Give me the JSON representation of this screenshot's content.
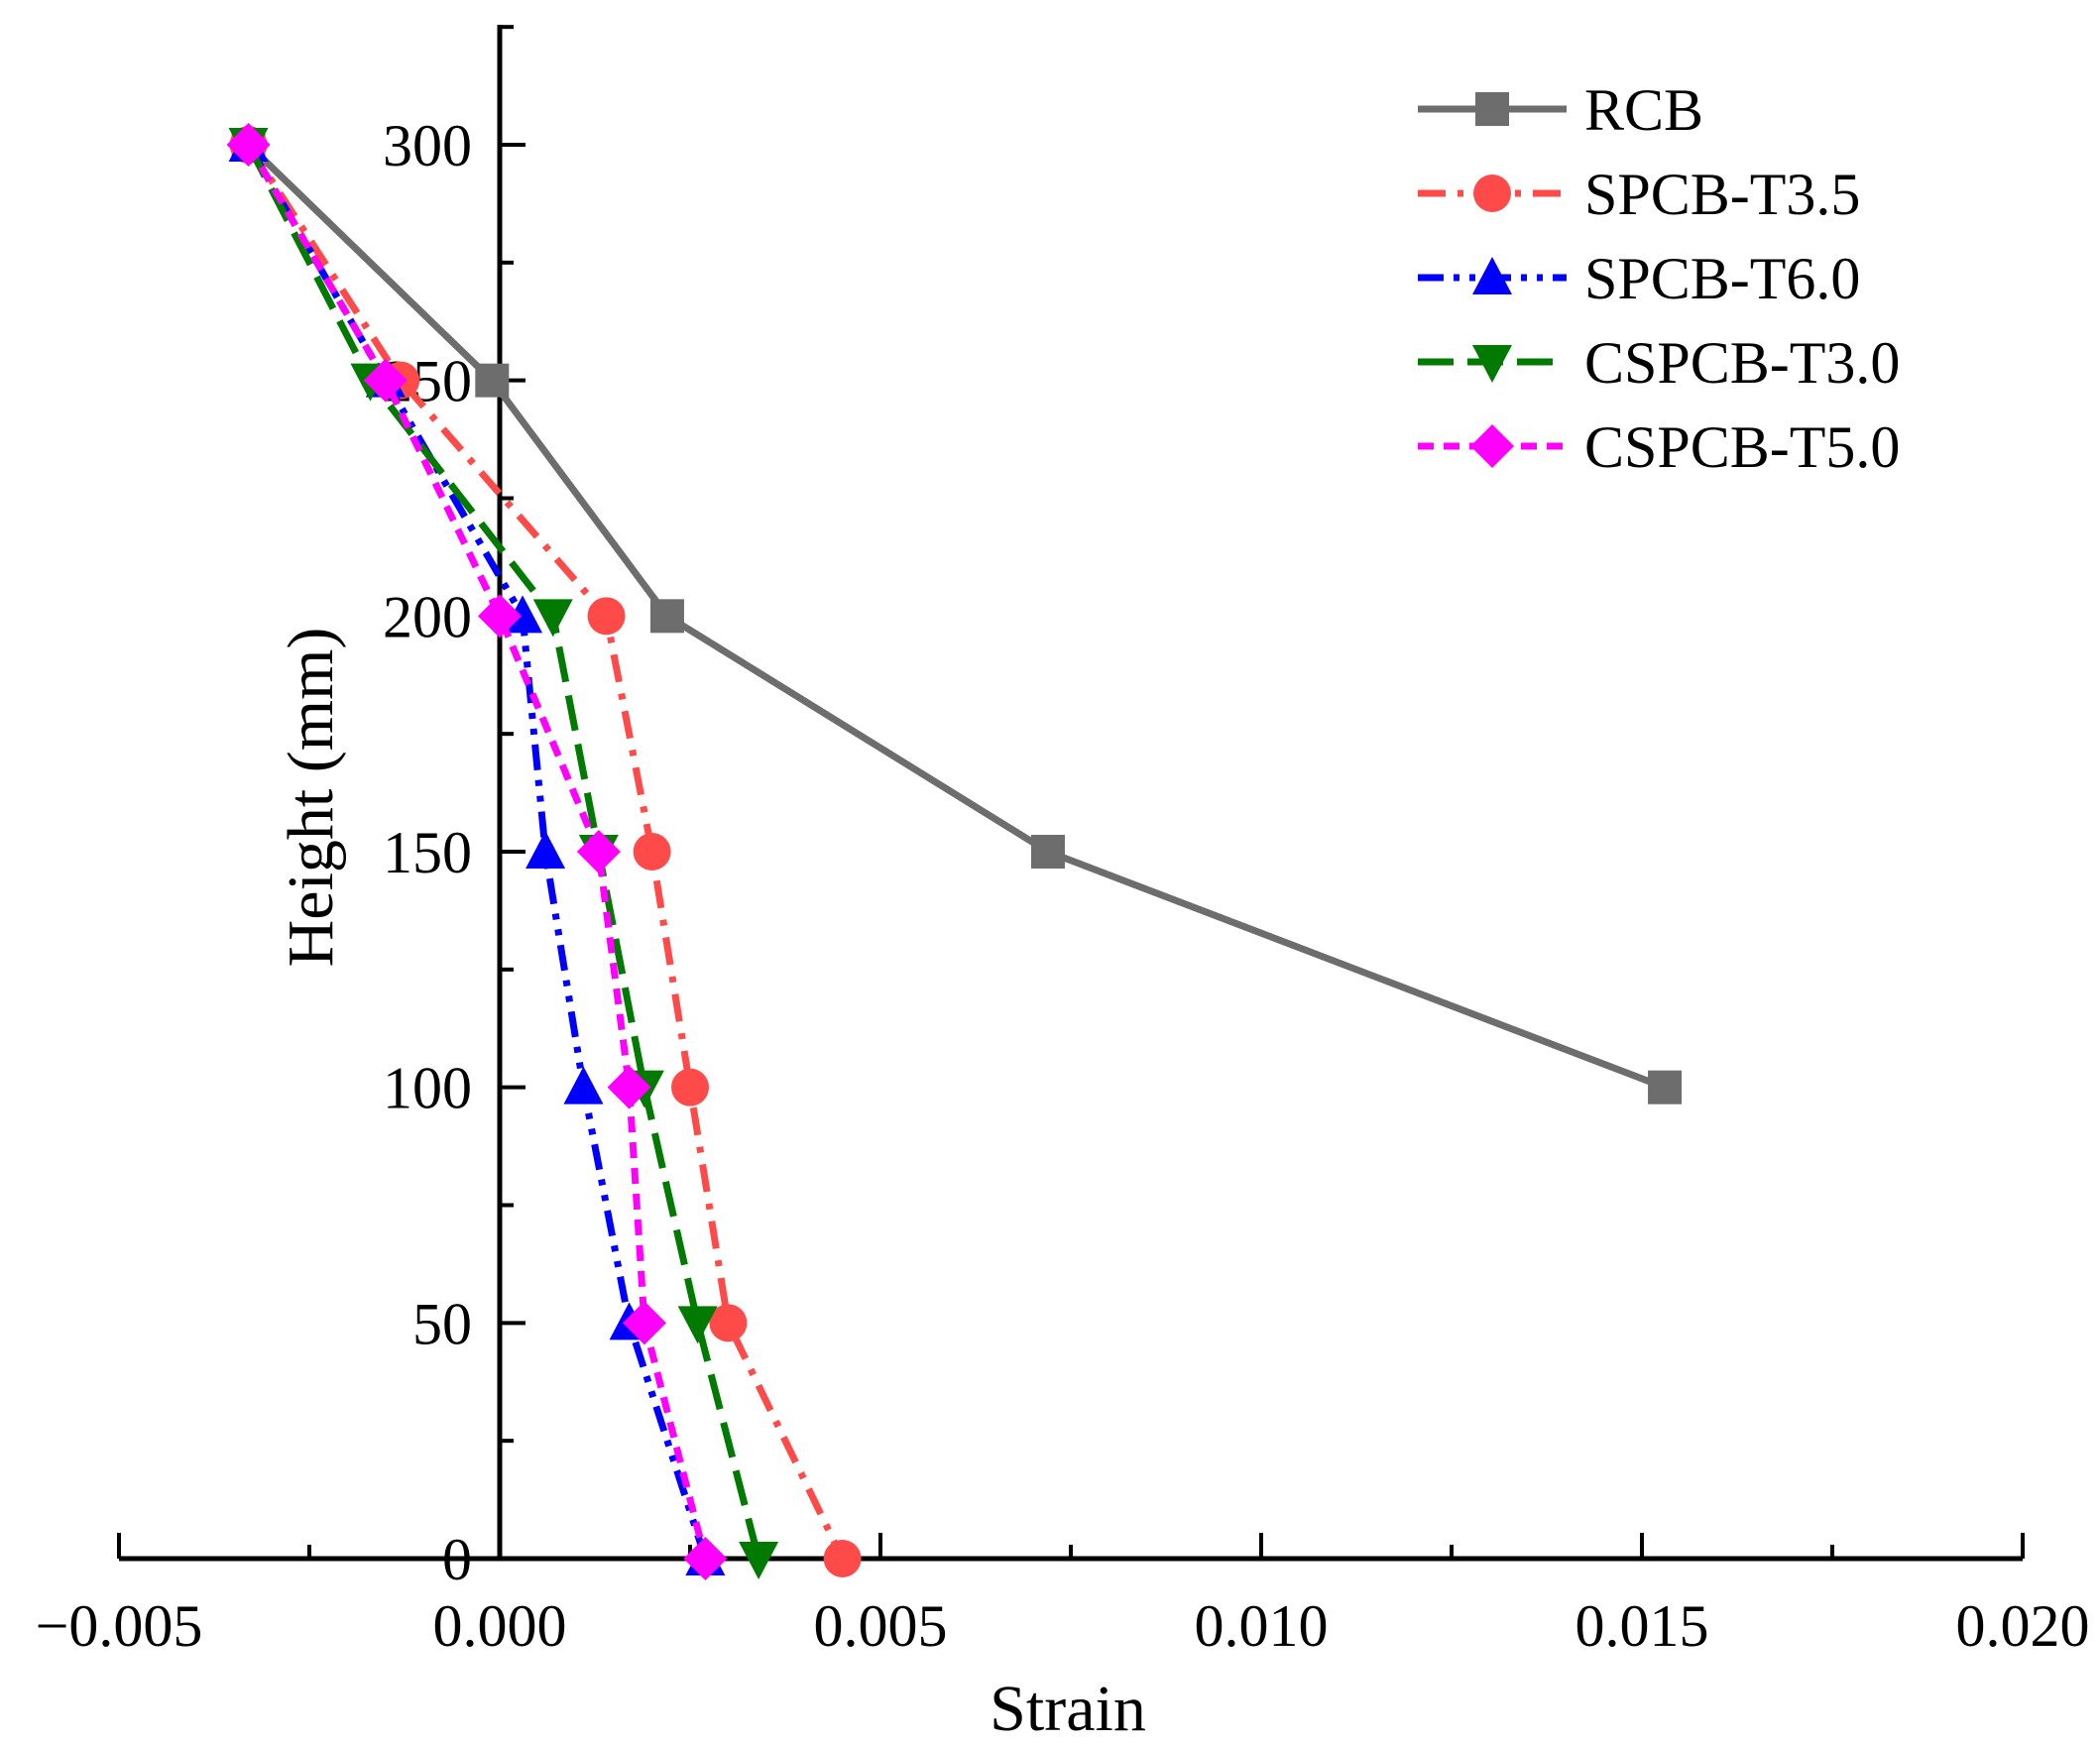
{
  "chart_data": {
    "type": "line",
    "title": "",
    "xlabel": "Strain",
    "ylabel": "Height (mm)",
    "xlim": [
      -0.005,
      0.02
    ],
    "ylim": [
      0,
      325
    ],
    "xticks": [
      -0.005,
      0.0,
      0.005,
      0.01,
      0.015,
      0.02
    ],
    "xtick_labels": [
      "−0.005",
      "0.000",
      "0.005",
      "0.010",
      "0.015",
      "0.020"
    ],
    "yticks": [
      0,
      50,
      100,
      150,
      200,
      250,
      300
    ],
    "ytick_labels": [
      "0",
      "50",
      "100",
      "150",
      "200",
      "250",
      "300"
    ],
    "grid": false,
    "legend_position": "top-right",
    "series": [
      {
        "name": "RCB",
        "color": "#6d6d6d",
        "line_style": "solid",
        "marker": "square",
        "points": [
          [
            -0.0033,
            300
          ],
          [
            -0.0001,
            250
          ],
          [
            0.0022,
            200
          ],
          [
            0.0072,
            150
          ],
          [
            0.0153,
            100
          ]
        ]
      },
      {
        "name": "SPCB-T3.5",
        "color": "#ff4a4a",
        "line_style": "dashdot",
        "marker": "circle",
        "points": [
          [
            -0.0033,
            300
          ],
          [
            -0.0013,
            250
          ],
          [
            0.0014,
            200
          ],
          [
            0.002,
            150
          ],
          [
            0.0025,
            100
          ],
          [
            0.003,
            50
          ],
          [
            0.0045,
            0
          ]
        ]
      },
      {
        "name": "SPCB-T6.0",
        "color": "#0000ff",
        "line_style": "dashdotdot",
        "marker": "triangle-up",
        "points": [
          [
            -0.0033,
            300
          ],
          [
            -0.0015,
            250
          ],
          [
            0.0003,
            200
          ],
          [
            0.0006,
            150
          ],
          [
            0.0011,
            100
          ],
          [
            0.0017,
            50
          ],
          [
            0.0027,
            0
          ]
        ]
      },
      {
        "name": "CSPCB-T3.0",
        "color": "#007a00",
        "line_style": "dashed",
        "marker": "triangle-down",
        "points": [
          [
            -0.0033,
            300
          ],
          [
            -0.0017,
            250
          ],
          [
            0.0007,
            200
          ],
          [
            0.0013,
            150
          ],
          [
            0.0019,
            100
          ],
          [
            0.0026,
            50
          ],
          [
            0.0034,
            0
          ]
        ]
      },
      {
        "name": "CSPCB-T5.0",
        "color": "#ff00ff",
        "line_style": "short-dashed",
        "marker": "diamond",
        "points": [
          [
            -0.0033,
            300
          ],
          [
            -0.0015,
            250
          ],
          [
            0.0,
            200
          ],
          [
            0.0013,
            150
          ],
          [
            0.0017,
            100
          ],
          [
            0.0019,
            50
          ],
          [
            0.0027,
            0
          ]
        ]
      }
    ]
  }
}
